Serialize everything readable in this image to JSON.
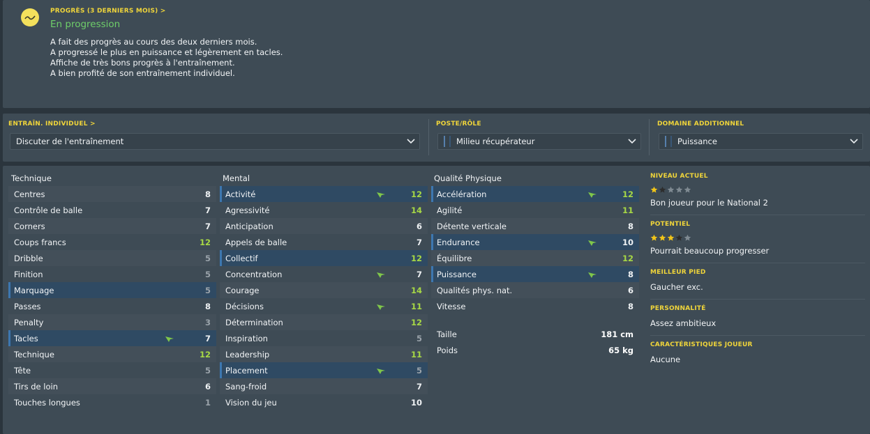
{
  "progress": {
    "title": "PROGRÈS (3 DERNIERS MOIS) >",
    "status": "En progression",
    "lines": [
      "A fait des progrès au cours des deux derniers mois.",
      "A progressé le plus en puissance et légèrement en tacles.",
      "Affiche de très bons progrès à l'entraînement.",
      "A bien profité de son entraînement individuel."
    ]
  },
  "training": {
    "individual_label": "ENTRAÎN. INDIVIDUEL >",
    "individual_value": "Discuter de l'entraînement",
    "role_label": "POSTE/RÔLE",
    "role_value": "Milieu récupérateur",
    "extra_label": "DOMAINE ADDITIONNEL",
    "extra_value": "Puissance"
  },
  "technique": {
    "header": "Technique",
    "rows": [
      {
        "name": "Centres",
        "value": "8"
      },
      {
        "name": "Contrôle de balle",
        "value": "7"
      },
      {
        "name": "Corners",
        "value": "7"
      },
      {
        "name": "Coups francs",
        "value": "12"
      },
      {
        "name": "Dribble",
        "value": "5"
      },
      {
        "name": "Finition",
        "value": "5"
      },
      {
        "name": "Marquage",
        "value": "5"
      },
      {
        "name": "Passes",
        "value": "8"
      },
      {
        "name": "Penalty",
        "value": "3"
      },
      {
        "name": "Tacles",
        "value": "7"
      },
      {
        "name": "Technique",
        "value": "12"
      },
      {
        "name": "Tête",
        "value": "5"
      },
      {
        "name": "Tirs de loin",
        "value": "6"
      },
      {
        "name": "Touches longues",
        "value": "1"
      }
    ]
  },
  "mental": {
    "header": "Mental",
    "rows": [
      {
        "name": "Activité",
        "value": "12"
      },
      {
        "name": "Agressivité",
        "value": "14"
      },
      {
        "name": "Anticipation",
        "value": "6"
      },
      {
        "name": "Appels de balle",
        "value": "7"
      },
      {
        "name": "Collectif",
        "value": "12"
      },
      {
        "name": "Concentration",
        "value": "7"
      },
      {
        "name": "Courage",
        "value": "14"
      },
      {
        "name": "Décisions",
        "value": "11"
      },
      {
        "name": "Détermination",
        "value": "12"
      },
      {
        "name": "Inspiration",
        "value": "5"
      },
      {
        "name": "Leadership",
        "value": "11"
      },
      {
        "name": "Placement",
        "value": "5"
      },
      {
        "name": "Sang-froid",
        "value": "7"
      },
      {
        "name": "Vision du jeu",
        "value": "10"
      }
    ]
  },
  "physical": {
    "header": "Qualité Physique",
    "rows": [
      {
        "name": "Accélération",
        "value": "12"
      },
      {
        "name": "Agilité",
        "value": "11"
      },
      {
        "name": "Détente verticale",
        "value": "8"
      },
      {
        "name": "Endurance",
        "value": "10"
      },
      {
        "name": "Équilibre",
        "value": "12"
      },
      {
        "name": "Puissance",
        "value": "8"
      },
      {
        "name": "Qualités phys. nat.",
        "value": "6"
      },
      {
        "name": "Vitesse",
        "value": "8"
      }
    ],
    "extra": [
      {
        "name": "Taille",
        "value": "181 cm"
      },
      {
        "name": "Poids",
        "value": "65 kg"
      }
    ]
  },
  "info": {
    "current_label": "NIVEAU ACTUEL",
    "current_stars": 1,
    "current_text": "Bon joueur pour le National 2",
    "potential_label": "POTENTIEL",
    "potential_stars": 3,
    "potential_text": "Pourrait beaucoup progresser",
    "foot_label": "MEILLEUR PIED",
    "foot_text": "Gaucher exc.",
    "personality_label": "PERSONNALITÉ",
    "personality_text": "Assez ambitieux",
    "traits_label": "CARACTÉRISTIQUES JOUEUR",
    "traits_text": "Aucune"
  },
  "colors": {
    "accent_yellow": "#f0d53a",
    "progress_green": "#6fcf6a",
    "high_value": "#a7d845",
    "highlight_row": "#2f4a63",
    "panel": "#3e4b55"
  }
}
